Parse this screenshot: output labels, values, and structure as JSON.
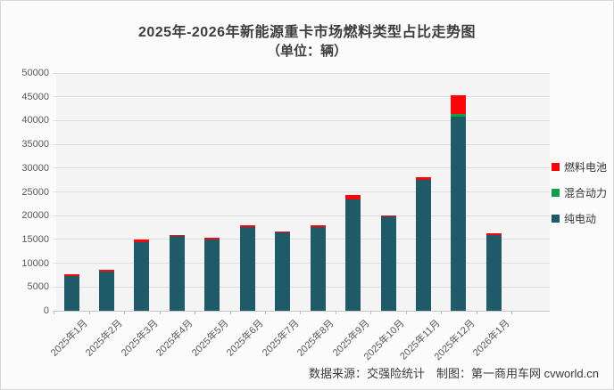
{
  "chart": {
    "title_line1": "2025年-2026年新能源重卡市场燃料类型占比走势图",
    "title_line2": "（单位：辆）"
  },
  "chart_data": {
    "type": "bar",
    "stacked": true,
    "title": "2025年-2026年新能源重卡市场燃料类型占比走势图（单位：辆）",
    "categories": [
      "2025年1月",
      "2025年2月",
      "2025年3月",
      "2025年4月",
      "2025年5月",
      "2025年6月",
      "2025年7月",
      "2025年8月",
      "2025年9月",
      "2025年10月",
      "2025年11月",
      "2025年12月",
      "2026年1月"
    ],
    "series": [
      {
        "name": "纯电动",
        "color": "#1f5a68",
        "values": [
          7300,
          8300,
          14400,
          15700,
          15000,
          17600,
          16400,
          17600,
          23500,
          19800,
          27500,
          40900,
          16000
        ]
      },
      {
        "name": "混合动力",
        "color": "#0ca04a",
        "values": [
          0,
          0,
          0,
          0,
          0,
          0,
          0,
          0,
          0,
          0,
          0,
          400,
          0
        ]
      },
      {
        "name": "燃料电池",
        "color": "#fb0508",
        "values": [
          200,
          200,
          600,
          200,
          200,
          400,
          300,
          200,
          800,
          300,
          600,
          4000,
          200
        ]
      }
    ],
    "ylim": [
      0,
      50000
    ],
    "ytick_interval": 5000,
    "grid": true,
    "legend_position": "right",
    "legend_order_top_to_bottom": [
      "燃料电池",
      "混合动力",
      "纯电动"
    ]
  },
  "footer": {
    "text": "数据来源：交强险统计　制图：第一商用车网 cvworld.cn"
  },
  "colors": {
    "pure_electric": "#1f5a68",
    "hybrid": "#0ca04a",
    "fuel_cell": "#fb0508",
    "plot_background": "#f4f4f4",
    "gridline": "#dedede"
  }
}
